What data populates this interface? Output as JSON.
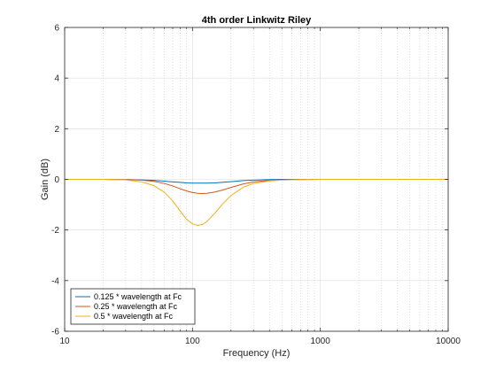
{
  "chart_data": {
    "type": "line",
    "title": "4th order Linkwitz Riley",
    "xlabel": "Frequency (Hz)",
    "ylabel": "Gain (dB)",
    "xscale": "log",
    "xlim": [
      10,
      10000
    ],
    "ylim": [
      -6,
      6
    ],
    "x_ticks": [
      10,
      100,
      1000,
      10000
    ],
    "x_tick_labels": [
      "10",
      "100",
      "1000",
      "10000"
    ],
    "y_ticks": [
      -6,
      -4,
      -2,
      0,
      2,
      4,
      6
    ],
    "y_tick_labels": [
      "-6",
      "-4",
      "-2",
      "0",
      "2",
      "4",
      "6"
    ],
    "grid": {
      "major": true,
      "minor_x": true
    },
    "legend_position": "bottom-left",
    "x": [
      10,
      20,
      30,
      40,
      50,
      60,
      70,
      80,
      90,
      100,
      110,
      120,
      130,
      150,
      170,
      200,
      250,
      300,
      400,
      500,
      700,
      1000,
      2000,
      5000,
      10000
    ],
    "series": [
      {
        "name": "0.125 * wavelength at Fc",
        "color": "#0072BD",
        "values": [
          0,
          0,
          -0.01,
          -0.02,
          -0.04,
          -0.07,
          -0.1,
          -0.12,
          -0.14,
          -0.15,
          -0.15,
          -0.15,
          -0.15,
          -0.14,
          -0.12,
          -0.09,
          -0.05,
          -0.03,
          -0.01,
          0,
          0,
          0,
          0,
          0,
          0
        ]
      },
      {
        "name": "0.25 * wavelength at Fc",
        "color": "#D95319",
        "values": [
          0,
          0,
          -0.01,
          -0.03,
          -0.08,
          -0.16,
          -0.26,
          -0.37,
          -0.46,
          -0.52,
          -0.55,
          -0.56,
          -0.55,
          -0.5,
          -0.43,
          -0.32,
          -0.18,
          -0.1,
          -0.04,
          -0.02,
          -0.01,
          0,
          0,
          0,
          0
        ]
      },
      {
        "name": "0.5 * wavelength at Fc",
        "color": "#EDB120",
        "values": [
          0,
          0,
          -0.02,
          -0.1,
          -0.25,
          -0.5,
          -0.85,
          -1.25,
          -1.58,
          -1.76,
          -1.82,
          -1.78,
          -1.66,
          -1.33,
          -1.0,
          -0.64,
          -0.31,
          -0.16,
          -0.06,
          -0.03,
          -0.01,
          0,
          0,
          0,
          0
        ]
      }
    ]
  }
}
